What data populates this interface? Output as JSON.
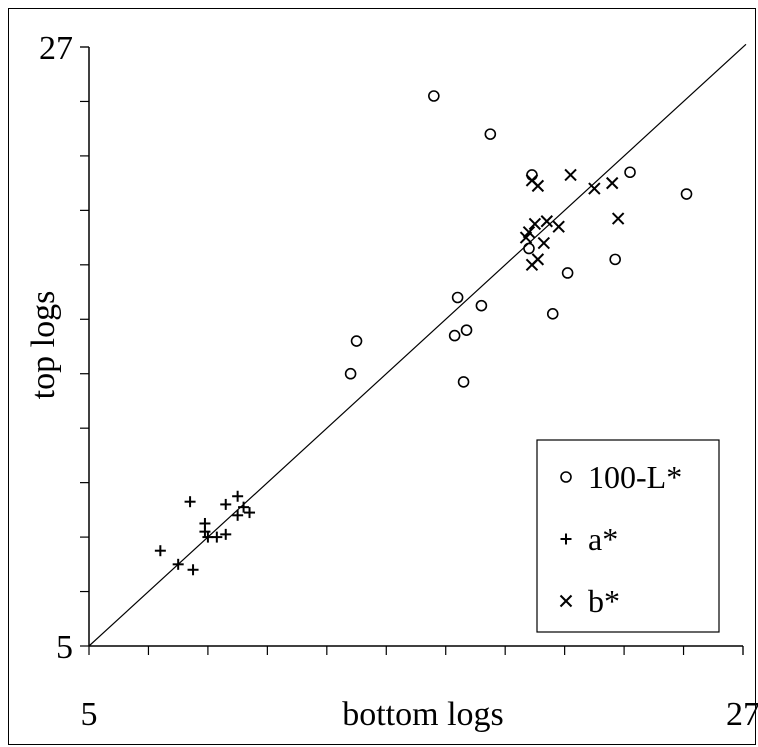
{
  "chart_data": {
    "type": "scatter",
    "xlabel": "bottom logs",
    "ylabel": "top logs",
    "xlim": [
      5,
      27
    ],
    "ylim": [
      5,
      27
    ],
    "x_ticks_labeled": [
      5,
      27
    ],
    "y_ticks_labeled": [
      5,
      27
    ],
    "minor_tick_step": 2,
    "reference_line": "y = x",
    "grid": false,
    "legend": "bottom-right",
    "series": [
      {
        "name": "100-L*",
        "marker": "circle",
        "points": [
          [
            16.6,
            25.2
          ],
          [
            18.5,
            23.8
          ],
          [
            17.4,
            17.8
          ],
          [
            18.2,
            17.5
          ],
          [
            19.8,
            19.6
          ],
          [
            20.6,
            17.2
          ],
          [
            17.3,
            16.4
          ],
          [
            17.7,
            16.6
          ],
          [
            21.1,
            18.7
          ],
          [
            19.9,
            22.3
          ],
          [
            22.7,
            19.2
          ],
          [
            23.2,
            22.4
          ],
          [
            25.1,
            21.6
          ],
          [
            17.6,
            14.7
          ],
          [
            13.8,
            15.0
          ],
          [
            14.0,
            16.2
          ]
        ]
      },
      {
        "name": "a*",
        "marker": "plus",
        "points": [
          [
            7.4,
            8.5
          ],
          [
            8.0,
            8.0
          ],
          [
            8.5,
            7.8
          ],
          [
            8.4,
            10.3
          ],
          [
            8.9,
            9.5
          ],
          [
            8.9,
            9.2
          ],
          [
            9.0,
            9.0
          ],
          [
            9.3,
            9.0
          ],
          [
            9.6,
            9.1
          ],
          [
            9.6,
            10.2
          ],
          [
            10.0,
            9.8
          ],
          [
            10.0,
            10.5
          ],
          [
            10.2,
            10.1
          ],
          [
            10.4,
            9.9
          ]
        ]
      },
      {
        "name": "b*",
        "marker": "cross",
        "points": [
          [
            19.9,
            22.1
          ],
          [
            20.1,
            21.9
          ],
          [
            21.2,
            22.3
          ],
          [
            22.0,
            21.8
          ],
          [
            22.6,
            22.0
          ],
          [
            20.4,
            20.6
          ],
          [
            19.7,
            20.0
          ],
          [
            19.8,
            20.2
          ],
          [
            20.0,
            20.5
          ],
          [
            19.9,
            19.0
          ],
          [
            20.1,
            19.2
          ],
          [
            20.8,
            20.4
          ],
          [
            20.3,
            19.8
          ],
          [
            22.8,
            20.7
          ]
        ]
      }
    ]
  }
}
